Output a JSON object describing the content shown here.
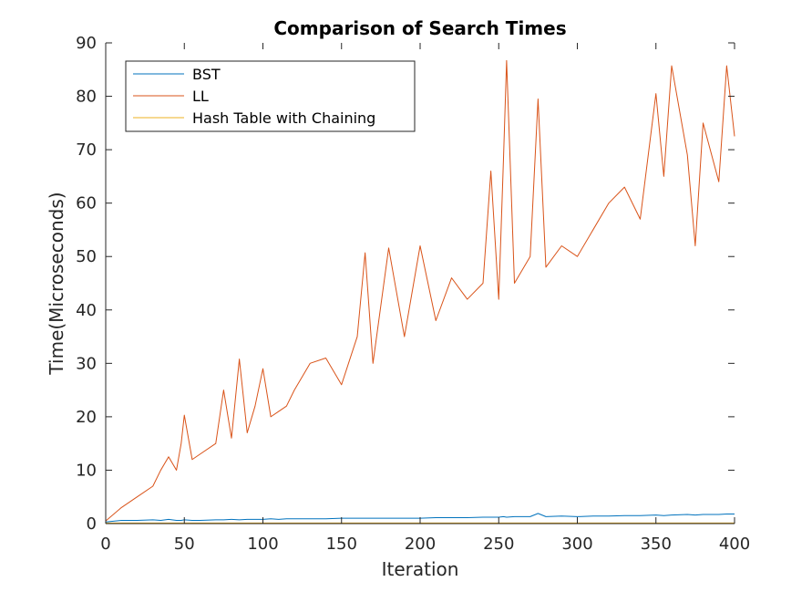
{
  "chart_data": {
    "type": "line",
    "title": "Comparison of Search Times",
    "xlabel": "Iteration",
    "ylabel": "Time(Microseconds)",
    "xlim": [
      0,
      400
    ],
    "ylim": [
      0,
      90
    ],
    "xticks": [
      "0",
      "50",
      "100",
      "150",
      "200",
      "250",
      "300",
      "350",
      "400"
    ],
    "yticks": [
      "0",
      "10",
      "20",
      "30",
      "40",
      "50",
      "60",
      "70",
      "80",
      "90"
    ],
    "grid": false,
    "legend_position": "top-left",
    "x": [
      0,
      10,
      20,
      30,
      35,
      40,
      45,
      48,
      50,
      55,
      60,
      70,
      75,
      80,
      85,
      90,
      95,
      100,
      105,
      110,
      115,
      120,
      130,
      140,
      150,
      160,
      165,
      170,
      180,
      190,
      200,
      210,
      220,
      230,
      240,
      245,
      250,
      253,
      255,
      260,
      270,
      275,
      280,
      290,
      300,
      310,
      320,
      330,
      340,
      350,
      355,
      360,
      370,
      375,
      380,
      390,
      395,
      400
    ],
    "series": [
      {
        "name": "BST",
        "color": "#0072BD",
        "values": [
          0.3,
          0.6,
          0.6,
          0.7,
          0.6,
          0.8,
          0.6,
          0.6,
          0.7,
          0.6,
          0.6,
          0.7,
          0.7,
          0.8,
          0.7,
          0.8,
          0.8,
          0.8,
          0.9,
          0.8,
          0.9,
          0.9,
          0.9,
          0.9,
          1.0,
          1.0,
          1.0,
          1.0,
          1.0,
          1.0,
          1.0,
          1.1,
          1.1,
          1.1,
          1.2,
          1.2,
          1.2,
          1.3,
          1.2,
          1.3,
          1.3,
          1.9,
          1.3,
          1.4,
          1.3,
          1.4,
          1.4,
          1.5,
          1.5,
          1.6,
          1.5,
          1.6,
          1.7,
          1.6,
          1.7,
          1.7,
          1.8,
          1.8
        ]
      },
      {
        "name": "LL",
        "color": "#D95319",
        "values": [
          0.5,
          3.0,
          5.0,
          7.0,
          10.0,
          12.5,
          10.0,
          15.0,
          20.3,
          12.0,
          13.0,
          15.0,
          25.0,
          16.0,
          30.8,
          17.0,
          22.0,
          29.0,
          20.0,
          21.0,
          22.0,
          25.0,
          30.0,
          31.0,
          26.0,
          35.0,
          50.7,
          30.0,
          51.6,
          35.0,
          52.0,
          38.0,
          46.0,
          42.0,
          45.0,
          66.0,
          42.0,
          68.0,
          86.7,
          45.0,
          50.0,
          79.5,
          48.0,
          52.0,
          50.0,
          55.0,
          60.0,
          63.0,
          57.0,
          80.5,
          65.0,
          85.7,
          69.0,
          52.0,
          75.0,
          64.0,
          85.7,
          72.5
        ]
      },
      {
        "name": "Hash Table with Chaining",
        "color": "#EDB120",
        "values": [
          0.1,
          0.1,
          0.1,
          0.1,
          0.1,
          0.1,
          0.1,
          0.1,
          0.1,
          0.1,
          0.1,
          0.1,
          0.1,
          0.1,
          0.1,
          0.1,
          0.1,
          0.1,
          0.1,
          0.1,
          0.1,
          0.1,
          0.1,
          0.1,
          0.1,
          0.1,
          0.1,
          0.1,
          0.1,
          0.1,
          0.1,
          0.1,
          0.1,
          0.1,
          0.1,
          0.1,
          0.1,
          0.1,
          0.1,
          0.1,
          0.1,
          0.1,
          0.1,
          0.1,
          0.1,
          0.1,
          0.1,
          0.1,
          0.1,
          0.1,
          0.1,
          0.1,
          0.1,
          0.1,
          0.1,
          0.1,
          0.1,
          0.1
        ]
      }
    ]
  }
}
